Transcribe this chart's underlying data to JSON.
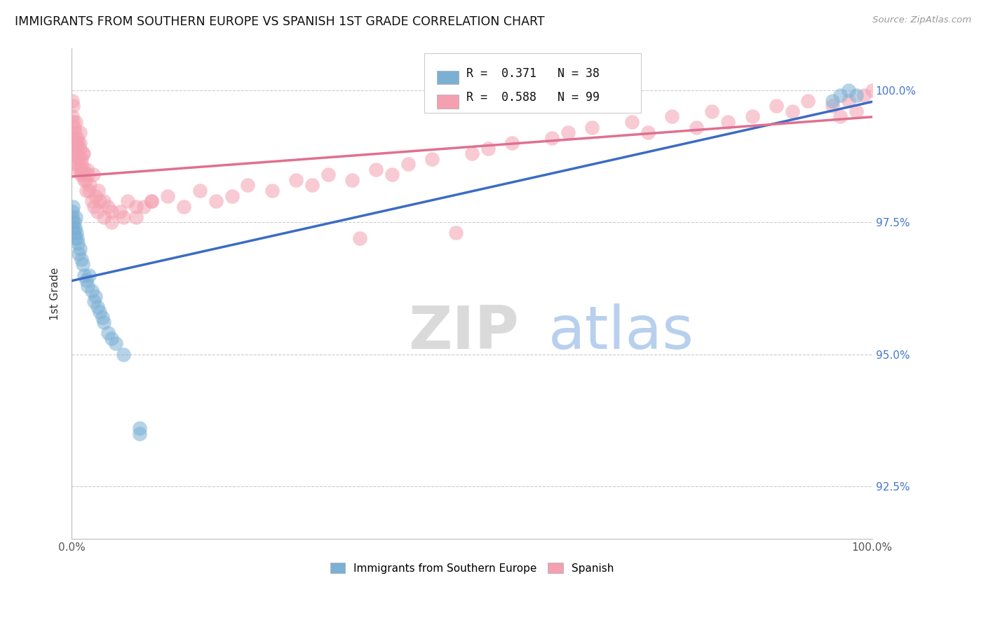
{
  "title": "IMMIGRANTS FROM SOUTHERN EUROPE VS SPANISH 1ST GRADE CORRELATION CHART",
  "source": "Source: ZipAtlas.com",
  "ylabel": "1st Grade",
  "right_ytick_labels": [
    "92.5%",
    "95.0%",
    "97.5%",
    "100.0%"
  ],
  "right_ytick_values": [
    92.5,
    95.0,
    97.5,
    100.0
  ],
  "legend1_label": "Immigrants from Southern Europe",
  "legend2_label": "Spanish",
  "r_blue": 0.371,
  "n_blue": 38,
  "r_pink": 0.588,
  "n_pink": 99,
  "blue_color": "#7BAFD4",
  "pink_color": "#F4A0B0",
  "blue_line_color": "#3B6CC5",
  "pink_line_color": "#E07090",
  "background_color": "#FFFFFF",
  "grid_color": "#CCCCCC",
  "ylim_low": 91.5,
  "ylim_high": 100.8,
  "xlim_low": 0.0,
  "xlim_high": 1.0,
  "blue_x": [
    0.001,
    0.001,
    0.001,
    0.002,
    0.002,
    0.003,
    0.003,
    0.004,
    0.004,
    0.005,
    0.006,
    0.007,
    0.008,
    0.009,
    0.01,
    0.012,
    0.014,
    0.016,
    0.018,
    0.02,
    0.022,
    0.025,
    0.028,
    0.03,
    0.032,
    0.035,
    0.038,
    0.04,
    0.045,
    0.05,
    0.055,
    0.065,
    0.085,
    0.085,
    0.95,
    0.96,
    0.97,
    0.98
  ],
  "blue_y": [
    97.5,
    97.6,
    97.7,
    97.4,
    97.8,
    97.3,
    97.5,
    97.2,
    97.4,
    97.6,
    97.3,
    97.2,
    97.1,
    96.9,
    97.0,
    96.8,
    96.7,
    96.5,
    96.4,
    96.3,
    96.5,
    96.2,
    96.0,
    96.1,
    95.9,
    95.8,
    95.7,
    95.6,
    95.4,
    95.3,
    95.2,
    95.0,
    93.5,
    93.6,
    99.8,
    99.9,
    100.0,
    99.9
  ],
  "pink_x": [
    0.001,
    0.001,
    0.001,
    0.002,
    0.002,
    0.002,
    0.003,
    0.003,
    0.004,
    0.004,
    0.005,
    0.005,
    0.006,
    0.007,
    0.007,
    0.008,
    0.009,
    0.01,
    0.01,
    0.011,
    0.012,
    0.013,
    0.014,
    0.015,
    0.016,
    0.018,
    0.02,
    0.022,
    0.025,
    0.028,
    0.03,
    0.032,
    0.035,
    0.04,
    0.045,
    0.05,
    0.06,
    0.07,
    0.08,
    0.09,
    0.1,
    0.12,
    0.14,
    0.16,
    0.18,
    0.2,
    0.22,
    0.25,
    0.28,
    0.3,
    0.32,
    0.35,
    0.38,
    0.4,
    0.42,
    0.45,
    0.5,
    0.52,
    0.55,
    0.6,
    0.62,
    0.65,
    0.7,
    0.72,
    0.75,
    0.78,
    0.8,
    0.82,
    0.85,
    0.88,
    0.9,
    0.92,
    0.95,
    0.96,
    0.97,
    0.98,
    0.99,
    1.0,
    0.36,
    0.48,
    0.005,
    0.006,
    0.007,
    0.008,
    0.009,
    0.01,
    0.011,
    0.012,
    0.015,
    0.017,
    0.019,
    0.023,
    0.027,
    0.033,
    0.04,
    0.05,
    0.065,
    0.08,
    0.1
  ],
  "pink_y": [
    99.2,
    99.5,
    99.8,
    99.1,
    99.4,
    99.7,
    99.0,
    99.3,
    98.9,
    99.2,
    99.0,
    99.4,
    98.8,
    99.1,
    98.6,
    99.0,
    98.7,
    98.9,
    99.2,
    98.5,
    98.7,
    98.4,
    98.8,
    98.5,
    98.3,
    98.1,
    98.4,
    98.1,
    97.9,
    97.8,
    98.0,
    97.7,
    97.9,
    97.6,
    97.8,
    97.5,
    97.7,
    97.9,
    97.6,
    97.8,
    97.9,
    98.0,
    97.8,
    98.1,
    97.9,
    98.0,
    98.2,
    98.1,
    98.3,
    98.2,
    98.4,
    98.3,
    98.5,
    98.4,
    98.6,
    98.7,
    98.8,
    98.9,
    99.0,
    99.1,
    99.2,
    99.3,
    99.4,
    99.2,
    99.5,
    99.3,
    99.6,
    99.4,
    99.5,
    99.7,
    99.6,
    99.8,
    99.7,
    99.5,
    99.8,
    99.6,
    99.9,
    100.0,
    97.2,
    97.3,
    98.6,
    98.8,
    98.9,
    98.5,
    98.7,
    99.0,
    98.4,
    98.6,
    98.8,
    98.3,
    98.5,
    98.2,
    98.4,
    98.1,
    97.9,
    97.7,
    97.6,
    97.8,
    97.9
  ],
  "blue_trend": [
    97.1,
    100.0
  ],
  "pink_trend": [
    98.5,
    99.6
  ]
}
